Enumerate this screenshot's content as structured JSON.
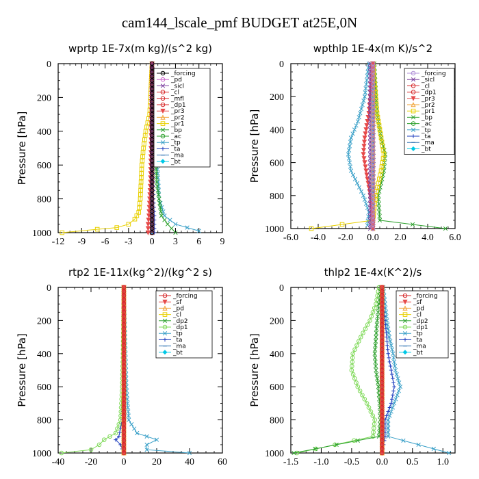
{
  "figure_title": "cam144_lscale_pmf  BUDGET at25E,0N",
  "chart_data": [
    {
      "type": "line",
      "title": "wprtp  1E-7x(m kg)/(s^2 kg)",
      "xlabel": "",
      "ylabel": "Pressure [hPa]",
      "xlim": [
        -12,
        9
      ],
      "ylim": [
        1000,
        0
      ],
      "xticks": [
        -12,
        -9,
        -6,
        -3,
        0,
        3,
        6,
        9
      ],
      "xtick_labels": [
        "-12",
        "-9",
        "-6",
        "-3",
        "0",
        "3",
        "6",
        "9"
      ],
      "yticks": [
        0,
        200,
        400,
        600,
        800,
        1000
      ],
      "legend_position": "top-right",
      "series": [
        {
          "name": "_forcing",
          "color": "#000000",
          "marker": "o",
          "p": [
            0,
            1000
          ],
          "x": [
            0,
            0
          ]
        },
        {
          "name": "_pd",
          "color": "#cc66cc",
          "marker": "o",
          "p": [
            0,
            1000
          ],
          "x": [
            0,
            0
          ]
        },
        {
          "name": "_sicl",
          "color": "#7b3f9e",
          "marker": "x",
          "p": [
            0,
            1000
          ],
          "x": [
            0,
            0
          ]
        },
        {
          "name": "_cl",
          "color": "#d62728",
          "marker": "o",
          "p": [
            0,
            1000
          ],
          "x": [
            0,
            0
          ]
        },
        {
          "name": "_mfl",
          "color": "#d62728",
          "marker": "o",
          "p": [
            0,
            1000
          ],
          "x": [
            0,
            0
          ]
        },
        {
          "name": "_dp1",
          "color": "#d62728",
          "marker": "o",
          "p": [
            0,
            1000
          ],
          "x": [
            0,
            0
          ]
        },
        {
          "name": "_pr3",
          "color": "#e64a4a",
          "marker": "v",
          "p": [
            0,
            400,
            700,
            900,
            950,
            1000
          ],
          "x": [
            0,
            -0.1,
            -0.2,
            -0.4,
            -0.5,
            -0.5
          ]
        },
        {
          "name": "_pr2",
          "color": "#f0a030",
          "marker": "^",
          "p": [
            0,
            1000
          ],
          "x": [
            0,
            0
          ]
        },
        {
          "name": "_pr1",
          "color": "#e8d000",
          "marker": "s",
          "p": [
            0,
            300,
            400,
            500,
            600,
            700,
            800,
            880,
            920,
            950,
            970,
            980,
            1000
          ],
          "x": [
            0,
            -0.3,
            -0.8,
            -1.1,
            -1.3,
            -1.4,
            -1.5,
            -1.7,
            -2.2,
            -3.0,
            -4.5,
            -7.0,
            -11.5
          ]
        },
        {
          "name": "_bp",
          "color": "#2ca02c",
          "marker": "x",
          "p": [
            0,
            400,
            700,
            900,
            950,
            1000
          ],
          "x": [
            0,
            0.3,
            0.6,
            1.2,
            2.0,
            3.0
          ]
        },
        {
          "name": "_ac",
          "color": "#2ca02c",
          "marker": "o",
          "p": [
            0,
            1000
          ],
          "x": [
            0,
            0
          ]
        },
        {
          "name": "_tp",
          "color": "#3aa0c8",
          "marker": "x",
          "p": [
            0,
            400,
            600,
            800,
            900,
            950,
            990
          ],
          "x": [
            0,
            0.4,
            0.7,
            0.9,
            1.6,
            3.0,
            6.0
          ]
        },
        {
          "name": "_ta",
          "color": "#1f3fbf",
          "marker": "+",
          "p": [
            0,
            400,
            600,
            800,
            900,
            1000
          ],
          "x": [
            0,
            0.1,
            0.1,
            0.2,
            0.3,
            0.3
          ]
        },
        {
          "name": "_ma",
          "color": "#2a6fb0",
          "marker": "-",
          "p": [
            0,
            1000
          ],
          "x": [
            0,
            0
          ]
        },
        {
          "name": "_bt",
          "color": "#00c8e6",
          "marker": "D",
          "p": [
            0,
            1000
          ],
          "x": [
            0,
            0
          ]
        }
      ]
    },
    {
      "type": "line",
      "title": "wpthlp  1E-4x(m K)/s^2",
      "xlabel": "",
      "ylabel": "Pressure [hPa]",
      "xlim": [
        -6,
        6
      ],
      "ylim": [
        1000,
        0
      ],
      "xticks": [
        -6,
        -4,
        -2,
        0,
        2,
        4,
        6
      ],
      "xtick_labels": [
        "-6.0",
        "-4.0",
        "-2.0",
        "0.0",
        "2.0",
        "4.0",
        "6.0"
      ],
      "yticks": [
        0,
        200,
        400,
        600,
        800,
        1000
      ],
      "legend_position": "top-right",
      "series": [
        {
          "name": "_forcing",
          "color": "#b090d8",
          "marker": "o",
          "p": [
            0,
            1000
          ],
          "x": [
            0,
            0
          ]
        },
        {
          "name": "_sicl",
          "color": "#7b3f9e",
          "marker": "x",
          "p": [
            0,
            400,
            700,
            1000
          ],
          "x": [
            -0.2,
            -0.2,
            -0.2,
            -0.2
          ]
        },
        {
          "name": "_cl",
          "color": "#d62728",
          "marker": "o",
          "p": [
            0,
            1000
          ],
          "x": [
            0,
            0
          ]
        },
        {
          "name": "_dp1",
          "color": "#d62728",
          "marker": "o",
          "p": [
            0,
            1000
          ],
          "x": [
            0,
            0
          ]
        },
        {
          "name": "_pr3",
          "color": "#e64a4a",
          "marker": "v",
          "p": [
            0,
            300,
            450,
            550,
            650,
            800,
            950,
            1000
          ],
          "x": [
            0,
            -0.3,
            -0.6,
            -0.7,
            -0.5,
            -0.2,
            0,
            0
          ]
        },
        {
          "name": "_pr2",
          "color": "#f0a030",
          "marker": "^",
          "p": [
            0,
            1000
          ],
          "x": [
            0,
            0
          ]
        },
        {
          "name": "_pr1",
          "color": "#e8d000",
          "marker": "s",
          "p": [
            0,
            300,
            450,
            550,
            650,
            800,
            950,
            1000
          ],
          "x": [
            0,
            0.3,
            0.6,
            0.8,
            0.6,
            0.2,
            0,
            -4.5
          ]
        },
        {
          "name": "_bp",
          "color": "#2ca02c",
          "marker": "x",
          "p": [
            0,
            300,
            450,
            550,
            650,
            800,
            950,
            1000
          ],
          "x": [
            0.1,
            0.3,
            0.6,
            0.9,
            0.8,
            0.4,
            0.5,
            5.3
          ]
        },
        {
          "name": "_ac",
          "color": "#2ca02c",
          "marker": "o",
          "p": [
            0,
            1000
          ],
          "x": [
            0,
            0
          ]
        },
        {
          "name": "_tp",
          "color": "#3aa0c8",
          "marker": "x",
          "p": [
            0,
            200,
            350,
            450,
            550,
            650,
            800,
            900,
            980
          ],
          "x": [
            -0.3,
            -0.6,
            -1.1,
            -1.6,
            -1.8,
            -1.6,
            -0.7,
            -0.3,
            -0.4
          ]
        },
        {
          "name": "_ta",
          "color": "#1f3fbf",
          "marker": "+",
          "p": [
            0,
            400,
            700,
            1000
          ],
          "x": [
            0,
            0.05,
            0.05,
            0
          ]
        },
        {
          "name": "_ma",
          "color": "#2a6fb0",
          "marker": "-",
          "p": [
            0,
            1000
          ],
          "x": [
            0,
            0
          ]
        },
        {
          "name": "_bt",
          "color": "#00c8e6",
          "marker": "D",
          "p": [
            0,
            1000
          ],
          "x": [
            0,
            0
          ]
        }
      ]
    },
    {
      "type": "line",
      "title": "rtp2  1E-11x(kg^2)/(kg^2 s)",
      "xlabel": "",
      "ylabel": "Pressure [hPa]",
      "xlim": [
        -40,
        60
      ],
      "ylim": [
        1000,
        0
      ],
      "xticks": [
        -40,
        -20,
        0,
        20,
        40,
        60
      ],
      "xtick_labels": [
        "-40",
        "-20",
        "0",
        "20",
        "40",
        "60"
      ],
      "yticks": [
        0,
        200,
        400,
        600,
        800,
        1000
      ],
      "legend_position": "top-right",
      "series": [
        {
          "name": "_forcing",
          "color": "#d62728",
          "marker": "o",
          "p": [
            0,
            1000
          ],
          "x": [
            0,
            0
          ]
        },
        {
          "name": "_sf",
          "color": "#e64a4a",
          "marker": "v",
          "p": [
            0,
            1000
          ],
          "x": [
            0,
            0
          ]
        },
        {
          "name": "_pd",
          "color": "#f0a030",
          "marker": "^",
          "p": [
            0,
            1000
          ],
          "x": [
            0,
            0
          ]
        },
        {
          "name": "_cl",
          "color": "#e8d000",
          "marker": "s",
          "p": [
            0,
            1000
          ],
          "x": [
            0,
            0
          ]
        },
        {
          "name": "_dp2",
          "color": "#2ca02c",
          "marker": "x",
          "p": [
            0,
            1000
          ],
          "x": [
            0,
            0
          ]
        },
        {
          "name": "_dp1",
          "color": "#7ed957",
          "marker": "o",
          "p": [
            0,
            400,
            600,
            800,
            880,
            920,
            950,
            980,
            1000
          ],
          "x": [
            0,
            -0.5,
            -1,
            -2,
            -5,
            -12,
            -15,
            -20,
            -38
          ]
        },
        {
          "name": "_tp",
          "color": "#3aa0c8",
          "marker": "x",
          "p": [
            0,
            400,
            600,
            800,
            880,
            920,
            950,
            980,
            1000
          ],
          "x": [
            0,
            1,
            1.5,
            3,
            8,
            20,
            14,
            14,
            40
          ]
        },
        {
          "name": "_ta",
          "color": "#1f3fbf",
          "marker": "+",
          "p": [
            0,
            600,
            800,
            900,
            920,
            950,
            1000
          ],
          "x": [
            0,
            0,
            -1,
            -3,
            -5,
            -2,
            0
          ]
        },
        {
          "name": "_ma",
          "color": "#2a6fb0",
          "marker": "-",
          "p": [
            0,
            1000
          ],
          "x": [
            0,
            0
          ]
        },
        {
          "name": "_bt",
          "color": "#00c8e6",
          "marker": "D",
          "p": [
            0,
            1000
          ],
          "x": [
            0,
            0
          ]
        }
      ]
    },
    {
      "type": "line",
      "title": "thlp2  1E-4x(K^2)/s",
      "xlabel": "",
      "ylabel": "Pressure [hPa]",
      "xlim": [
        -1.5,
        1.2
      ],
      "ylim": [
        1000,
        0
      ],
      "xticks": [
        -1.5,
        -1.0,
        -0.5,
        0.0,
        0.5,
        1.0
      ],
      "xtick_labels": [
        "-1.5",
        "-1.0",
        "-0.5",
        "0.0",
        "0.5",
        "1.0"
      ],
      "yticks": [
        0,
        200,
        400,
        600,
        800,
        1000
      ],
      "legend_position": "top-right",
      "series": [
        {
          "name": "_forcing",
          "color": "#d62728",
          "marker": "o",
          "p": [
            0,
            1000
          ],
          "x": [
            0,
            0
          ]
        },
        {
          "name": "_sf",
          "color": "#e64a4a",
          "marker": "v",
          "p": [
            0,
            1000
          ],
          "x": [
            0,
            0
          ]
        },
        {
          "name": "_pd",
          "color": "#f0a030",
          "marker": "^",
          "p": [
            0,
            1000
          ],
          "x": [
            0,
            0
          ]
        },
        {
          "name": "_cl",
          "color": "#e8d000",
          "marker": "s",
          "p": [
            0,
            1000
          ],
          "x": [
            0,
            0
          ]
        },
        {
          "name": "_dp2",
          "color": "#2ca02c",
          "marker": "x",
          "p": [
            0,
            100,
            200,
            300,
            400,
            500,
            600,
            700,
            800,
            900,
            1000
          ],
          "x": [
            -0.02,
            -0.05,
            -0.08,
            -0.1,
            -0.12,
            -0.1,
            -0.06,
            -0.04,
            -0.03,
            -0.05,
            -1.45
          ]
        },
        {
          "name": "_dp1",
          "color": "#7ed957",
          "marker": "o",
          "p": [
            0,
            100,
            200,
            300,
            400,
            500,
            600,
            700,
            800,
            900,
            1000
          ],
          "x": [
            -0.05,
            -0.1,
            -0.2,
            -0.35,
            -0.48,
            -0.5,
            -0.4,
            -0.25,
            -0.12,
            -0.15,
            -1.4
          ]
        },
        {
          "name": "_tp",
          "color": "#3aa0c8",
          "marker": "x",
          "p": [
            0,
            100,
            200,
            300,
            400,
            500,
            600,
            700,
            800,
            900,
            1000
          ],
          "x": [
            0.02,
            0.05,
            0.08,
            0.12,
            0.18,
            0.22,
            0.3,
            0.2,
            0.1,
            0.1,
            1.1
          ]
        },
        {
          "name": "_ta",
          "color": "#1f3fbf",
          "marker": "+",
          "p": [
            0,
            200,
            400,
            500,
            600,
            700,
            800,
            900,
            1000
          ],
          "x": [
            0,
            0.05,
            0.1,
            0.15,
            0.2,
            0.15,
            0.05,
            0.05,
            0
          ]
        },
        {
          "name": "_ma",
          "color": "#2a6fb0",
          "marker": "-",
          "p": [
            0,
            1000
          ],
          "x": [
            0,
            0
          ]
        },
        {
          "name": "_bt",
          "color": "#00c8e6",
          "marker": "D",
          "p": [
            0,
            1000
          ],
          "x": [
            0,
            0
          ]
        }
      ]
    }
  ]
}
